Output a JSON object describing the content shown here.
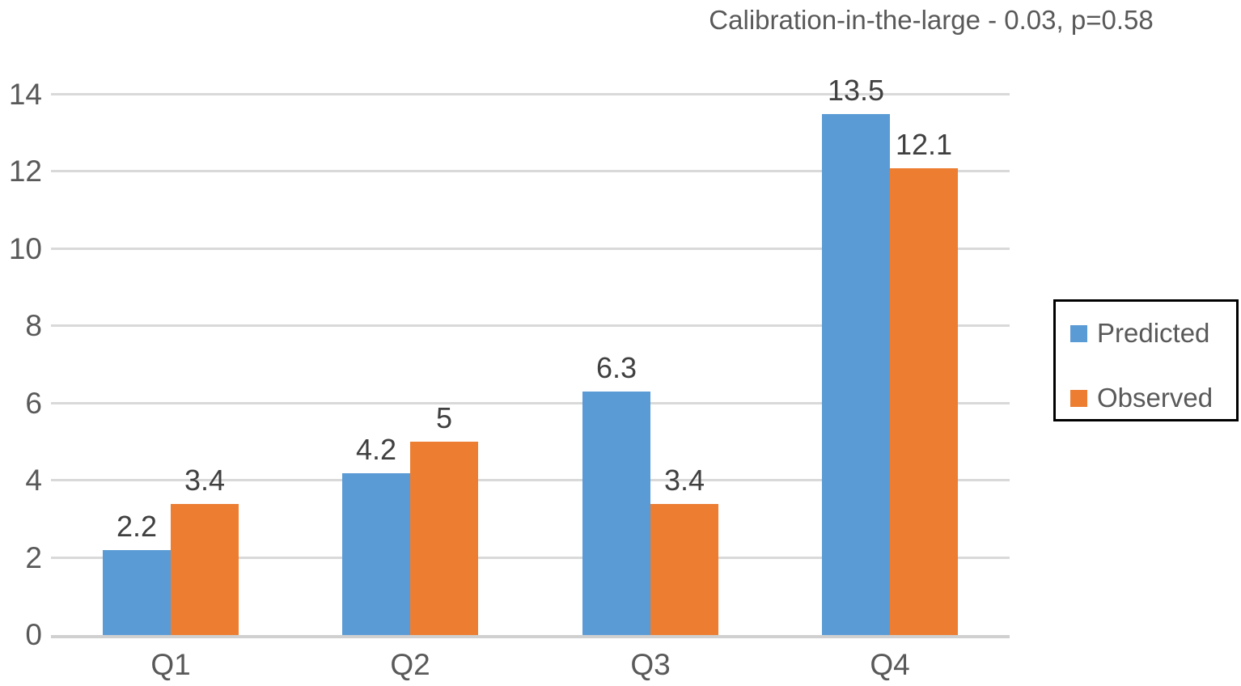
{
  "title": "Calibration-in-the-large - 0.03, p=0.58",
  "legend": {
    "items": [
      {
        "label": "Predicted",
        "color": "#5B9BD5"
      },
      {
        "label": "Observed",
        "color": "#ED7D31"
      }
    ]
  },
  "chart_data": {
    "type": "bar",
    "title": "Calibration-in-the-large - 0.03, p=0.58",
    "categories": [
      "Q1",
      "Q2",
      "Q3",
      "Q4"
    ],
    "series": [
      {
        "name": "Predicted",
        "color": "#5B9BD5",
        "values": [
          2.2,
          4.2,
          6.3,
          13.5
        ],
        "labels": [
          "2.2",
          "4.2",
          "6.3",
          "13.5"
        ]
      },
      {
        "name": "Observed",
        "color": "#ED7D31",
        "values": [
          3.4,
          5,
          3.4,
          12.1
        ],
        "labels": [
          "3.4",
          "5",
          "3.4",
          "12.1"
        ]
      }
    ],
    "y_axis": {
      "min": 0,
      "max": 14,
      "step": 2,
      "tick_labels": [
        "0",
        "2",
        "4",
        "6",
        "8",
        "10",
        "12",
        "14"
      ]
    },
    "xlabel": "",
    "ylabel": "",
    "grid": true,
    "legend_position": "right",
    "colors": {
      "gridline": "#D9D9D9",
      "axis_line": "#D0D0D0",
      "tick_text": "#595959",
      "data_label_text": "#404040",
      "title_text": "#595959",
      "legend_border": "#000000",
      "background": "#FFFFFF"
    }
  }
}
